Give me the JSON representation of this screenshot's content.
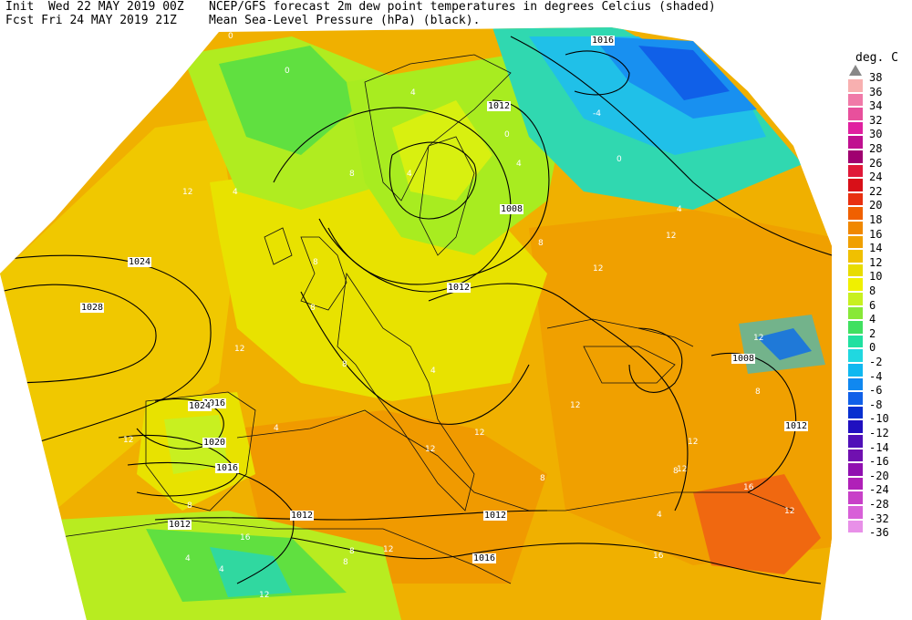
{
  "header": {
    "init_label": "Init",
    "init_time": "Wed 22 MAY 2019 00Z",
    "fcst_label": "Fcst",
    "fcst_time": "Fri 24 MAY 2019 21Z",
    "title_line1": "NCEP/GFS forecast 2m dew point temperatures in degrees Celcius (shaded)",
    "title_line2": "Mean Sea-Level Pressure (hPa) (black)."
  },
  "legend": {
    "unit": "deg. C",
    "labels": [
      "38",
      "36",
      "34",
      "32",
      "30",
      "28",
      "26",
      "24",
      "22",
      "20",
      "18",
      "16",
      "14",
      "12",
      "10",
      "8",
      "6",
      "4",
      "2",
      "0",
      "-2",
      "-4",
      "-6",
      "-8",
      "-10",
      "-12",
      "-14",
      "-16",
      "-20",
      "-24",
      "-28",
      "-32",
      "-36"
    ],
    "colors": [
      "#f8b0b0",
      "#f07aa8",
      "#e8509c",
      "#e020a0",
      "#c01090",
      "#a00070",
      "#e01838",
      "#d81018",
      "#e83010",
      "#f06000",
      "#f08800",
      "#f0a000",
      "#f0c000",
      "#e8dc00",
      "#f0f000",
      "#c8f020",
      "#88e838",
      "#40e060",
      "#20e0a0",
      "#20d8e0",
      "#10b8f0",
      "#1088f0",
      "#1060e8",
      "#0830d0",
      "#2010c0",
      "#5010b8",
      "#7010b0",
      "#9010b0",
      "#b020b8",
      "#c840c8",
      "#d860d8",
      "#e890e8"
    ]
  },
  "map": {
    "isobars": [
      {
        "label": "1016",
        "value": 1016
      },
      {
        "label": "1012",
        "value": 1012
      },
      {
        "label": "1008",
        "value": 1008
      },
      {
        "label": "1024",
        "value": 1024
      },
      {
        "label": "1028",
        "value": 1028
      },
      {
        "label": "1020",
        "value": 1020
      },
      {
        "label": "1012",
        "value": 1012
      },
      {
        "label": "1012",
        "value": 1012
      },
      {
        "label": "1016",
        "value": 1016
      },
      {
        "label": "1012",
        "value": 1012
      },
      {
        "label": "1016",
        "value": 1016
      },
      {
        "label": "1012",
        "value": 1012
      },
      {
        "label": "1008",
        "value": 1008
      },
      {
        "label": "1012",
        "value": 1012
      },
      {
        "label": "1016",
        "value": 1016
      },
      {
        "label": "1024",
        "value": 1024
      }
    ],
    "dewpoint_labels": [
      "0",
      "0",
      "4",
      "8",
      "4",
      "0",
      "-4",
      "0",
      "4",
      "4",
      "8",
      "12",
      "12",
      "4",
      "8",
      "8",
      "8",
      "4",
      "12",
      "12",
      "12",
      "12",
      "8",
      "12",
      "12",
      "12",
      "16",
      "12",
      "16",
      "4",
      "12",
      "16",
      "8",
      "16",
      "8",
      "4",
      "8",
      "8",
      "4",
      "12",
      "12",
      "8",
      "4",
      "12"
    ]
  }
}
